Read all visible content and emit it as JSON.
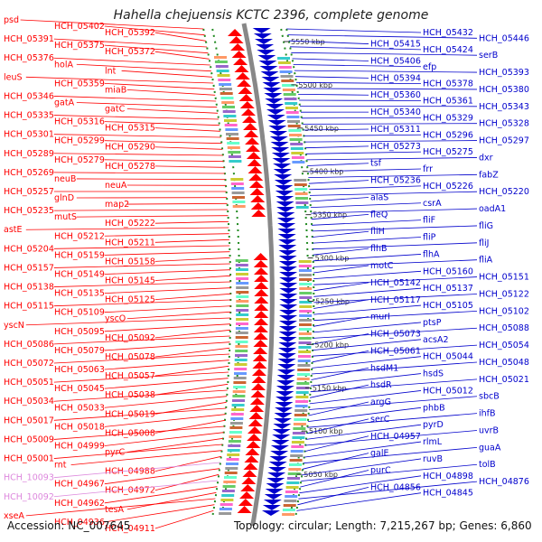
{
  "title": "Hahella chejuensis KCTC 2396, complete genome",
  "footer": {
    "accession": "Accession: NC_007645",
    "topology": "Topology: circular; Length: 7,215,267 bp; Genes: 6,860"
  },
  "colors": {
    "forward": "#ff0000",
    "reverse": "#0000cc",
    "pseudo": "#dd88dd",
    "backbone": "#888888",
    "tick": "#228b22"
  },
  "ruler": [
    {
      "label": "5550 kbp"
    },
    {
      "label": "5500 kbp"
    },
    {
      "label": "5450 kbp"
    },
    {
      "label": "5400 kbp"
    },
    {
      "label": "5350 kbp"
    },
    {
      "label": "5300 kbp"
    },
    {
      "label": "5250 kbp"
    },
    {
      "label": "5200 kbp"
    },
    {
      "label": "5150 kbp"
    },
    {
      "label": "5100 kbp"
    },
    {
      "label": "5050 kbp"
    }
  ],
  "left_labels": [
    {
      "text": "psd"
    },
    {
      "text": "HCH_05402"
    },
    {
      "text": "HCH_05392"
    },
    {
      "text": "HCH_05391"
    },
    {
      "text": "HCH_05375"
    },
    {
      "text": "HCH_05372"
    },
    {
      "text": "HCH_05376"
    },
    {
      "text": "holA"
    },
    {
      "text": "lnt"
    },
    {
      "text": "leuS"
    },
    {
      "text": "HCH_05359"
    },
    {
      "text": "miaB"
    },
    {
      "text": "HCH_05346"
    },
    {
      "text": "gatA"
    },
    {
      "text": "gatC"
    },
    {
      "text": "HCH_05335"
    },
    {
      "text": "HCH_05316"
    },
    {
      "text": "HCH_05315"
    },
    {
      "text": "HCH_05301"
    },
    {
      "text": "HCH_05299"
    },
    {
      "text": "HCH_05290"
    },
    {
      "text": "HCH_05289"
    },
    {
      "text": "HCH_05279"
    },
    {
      "text": "HCH_05278"
    },
    {
      "text": "HCH_05269"
    },
    {
      "text": "neuB"
    },
    {
      "text": "neuA"
    },
    {
      "text": "HCH_05257"
    },
    {
      "text": "glnD"
    },
    {
      "text": "map2"
    },
    {
      "text": "HCH_05235"
    },
    {
      "text": "mutS"
    },
    {
      "text": "HCH_05222"
    },
    {
      "text": "astE"
    },
    {
      "text": "HCH_05212"
    },
    {
      "text": "HCH_05211"
    },
    {
      "text": "HCH_05204"
    },
    {
      "text": "HCH_05159"
    },
    {
      "text": "HCH_05158"
    },
    {
      "text": "HCH_05157"
    },
    {
      "text": "HCH_05149"
    },
    {
      "text": "HCH_05145"
    },
    {
      "text": "HCH_05138"
    },
    {
      "text": "HCH_05135"
    },
    {
      "text": "HCH_05125"
    },
    {
      "text": "HCH_05115"
    },
    {
      "text": "HCH_05109"
    },
    {
      "text": "yscO"
    },
    {
      "text": "yscN"
    },
    {
      "text": "HCH_05095"
    },
    {
      "text": "HCH_05092"
    },
    {
      "text": "HCH_05086"
    },
    {
      "text": "HCH_05079"
    },
    {
      "text": "HCH_05078"
    },
    {
      "text": "HCH_05072"
    },
    {
      "text": "HCH_05063"
    },
    {
      "text": "HCH_05057"
    },
    {
      "text": "HCH_05051"
    },
    {
      "text": "HCH_05045"
    },
    {
      "text": "HCH_05038"
    },
    {
      "text": "HCH_05034"
    },
    {
      "text": "HCH_05033"
    },
    {
      "text": "HCH_05019"
    },
    {
      "text": "HCH_05017"
    },
    {
      "text": "HCH_05018"
    },
    {
      "text": "HCH_05008"
    },
    {
      "text": "HCH_05009"
    },
    {
      "text": "HCH_04999"
    },
    {
      "text": "pyrC"
    },
    {
      "text": "HCH_05001"
    },
    {
      "text": "rnt"
    },
    {
      "text": "HCH_04988"
    },
    {
      "text": "HCH_10093"
    },
    {
      "text": "HCH_04967"
    },
    {
      "text": "HCH_04972"
    },
    {
      "text": "HCH_10092"
    },
    {
      "text": "HCH_04962"
    },
    {
      "text": "tesA"
    },
    {
      "text": "xseA"
    },
    {
      "text": "HCH_04936"
    },
    {
      "text": "HCH_04911"
    }
  ],
  "right_labels": [
    {
      "text": "HCH_05432"
    },
    {
      "text": "HCH_05446"
    },
    {
      "text": "HCH_05415"
    },
    {
      "text": "HCH_05424"
    },
    {
      "text": "serB"
    },
    {
      "text": "HCH_05406"
    },
    {
      "text": "efp"
    },
    {
      "text": "HCH_05393"
    },
    {
      "text": "HCH_05394"
    },
    {
      "text": "HCH_05378"
    },
    {
      "text": "HCH_05380"
    },
    {
      "text": "HCH_05360"
    },
    {
      "text": "HCH_05361"
    },
    {
      "text": "HCH_05343"
    },
    {
      "text": "HCH_05340"
    },
    {
      "text": "HCH_05329"
    },
    {
      "text": "HCH_05328"
    },
    {
      "text": "HCH_05311"
    },
    {
      "text": "HCH_05296"
    },
    {
      "text": "HCH_05297"
    },
    {
      "text": "HCH_05273"
    },
    {
      "text": "HCH_05275"
    },
    {
      "text": "dxr"
    },
    {
      "text": "tsf"
    },
    {
      "text": "frr"
    },
    {
      "text": "fabZ"
    },
    {
      "text": "HCH_05236"
    },
    {
      "text": "HCH_05226"
    },
    {
      "text": "HCH_05220"
    },
    {
      "text": "alaS"
    },
    {
      "text": "csrA"
    },
    {
      "text": "oadA1"
    },
    {
      "text": "fleQ"
    },
    {
      "text": "fliF"
    },
    {
      "text": "fliG"
    },
    {
      "text": "fliH"
    },
    {
      "text": "fliP"
    },
    {
      "text": "fliJ"
    },
    {
      "text": "flhB"
    },
    {
      "text": "flhA"
    },
    {
      "text": "fliA"
    },
    {
      "text": "motC"
    },
    {
      "text": "HCH_05160"
    },
    {
      "text": "HCH_05151"
    },
    {
      "text": "HCH_05142"
    },
    {
      "text": "HCH_05137"
    },
    {
      "text": "HCH_05122"
    },
    {
      "text": "HCH_05117"
    },
    {
      "text": "HCH_05105"
    },
    {
      "text": "HCH_05102"
    },
    {
      "text": "murI"
    },
    {
      "text": "ptsP"
    },
    {
      "text": "HCH_05088"
    },
    {
      "text": "HCH_05073"
    },
    {
      "text": "acsA2"
    },
    {
      "text": "HCH_05054"
    },
    {
      "text": "HCH_05061"
    },
    {
      "text": "HCH_05044"
    },
    {
      "text": "HCH_05048"
    },
    {
      "text": "hsdM1"
    },
    {
      "text": "hsdS"
    },
    {
      "text": "HCH_05021"
    },
    {
      "text": "hsdR"
    },
    {
      "text": "HCH_05012"
    },
    {
      "text": "sbcB"
    },
    {
      "text": "argG"
    },
    {
      "text": "phbB"
    },
    {
      "text": "ihfB"
    },
    {
      "text": "serC"
    },
    {
      "text": "pyrD"
    },
    {
      "text": "uvrB"
    },
    {
      "text": "HCH_04957"
    },
    {
      "text": "rlmL"
    },
    {
      "text": "guaA"
    },
    {
      "text": "galE"
    },
    {
      "text": "ruvB"
    },
    {
      "text": "tolB"
    },
    {
      "text": "purC"
    },
    {
      "text": "HCH_04898"
    },
    {
      "text": "HCH_04876"
    },
    {
      "text": "HCH_04856"
    },
    {
      "text": "HCH_04845"
    }
  ]
}
